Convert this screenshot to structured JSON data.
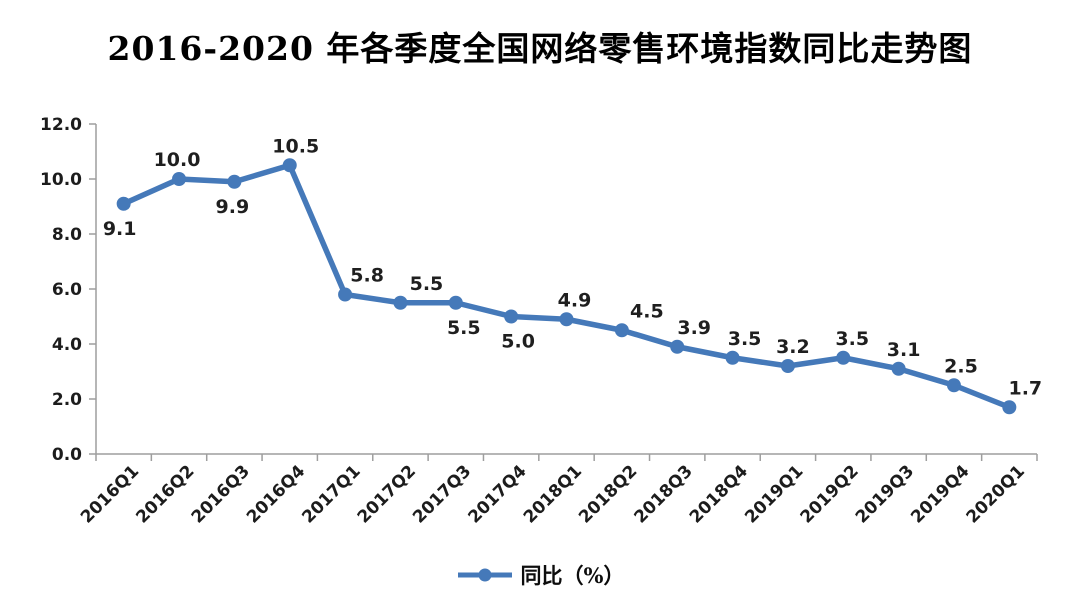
{
  "title": "2016-2020 年各季度全国网络零售环境指数同比走势图",
  "legend": {
    "label": "同比（%）"
  },
  "chart_data": {
    "type": "line",
    "title": "2016-2020 年各季度全国网络零售环境指数同比走势图",
    "categories": [
      "2016Q1",
      "2016Q2",
      "2016Q3",
      "2016Q4",
      "2017Q1",
      "2017Q2",
      "2017Q3",
      "2017Q4",
      "2018Q1",
      "2018Q2",
      "2018Q3",
      "2018Q4",
      "2019Q1",
      "2019Q2",
      "2019Q3",
      "2019Q4",
      "2020Q1"
    ],
    "series": [
      {
        "name": "同比（%）",
        "values": [
          9.1,
          10.0,
          9.9,
          10.5,
          5.8,
          5.5,
          5.5,
          5.0,
          4.9,
          4.5,
          3.9,
          3.5,
          3.2,
          3.5,
          3.1,
          2.5,
          1.7
        ],
        "data_labels": [
          "9.1",
          "10.0",
          "9.9",
          "10.5",
          "5.8",
          "5.5",
          "5.5",
          "5.0",
          "4.9",
          "4.5",
          "3.9",
          "3.5",
          "3.2",
          "3.5",
          "3.1",
          "2.5",
          "1.7"
        ]
      }
    ],
    "xlabel": "",
    "ylabel": "",
    "ylim": [
      0,
      12
    ],
    "ytick_labels": [
      "0.0",
      "2.0",
      "4.0",
      "6.0",
      "8.0",
      "10.0",
      "12.0"
    ],
    "grid": false,
    "legend_position": "bottom",
    "marker": "circle",
    "label_pos": [
      "below",
      "above",
      "below",
      "above",
      "above",
      "above",
      "below",
      "below",
      "above",
      "above",
      "above",
      "above",
      "above",
      "above",
      "above",
      "above",
      "above"
    ],
    "label_dx": [
      -4,
      -2,
      -2,
      6,
      22,
      26,
      8,
      7,
      8,
      25,
      17,
      12,
      5,
      9,
      5,
      7,
      16
    ],
    "colors": {
      "line": "#4579b9",
      "data_label": "#1f1f1f",
      "axis": "#9e9e9e",
      "tick_label": "#1c1c1c",
      "title": "#000000"
    }
  }
}
